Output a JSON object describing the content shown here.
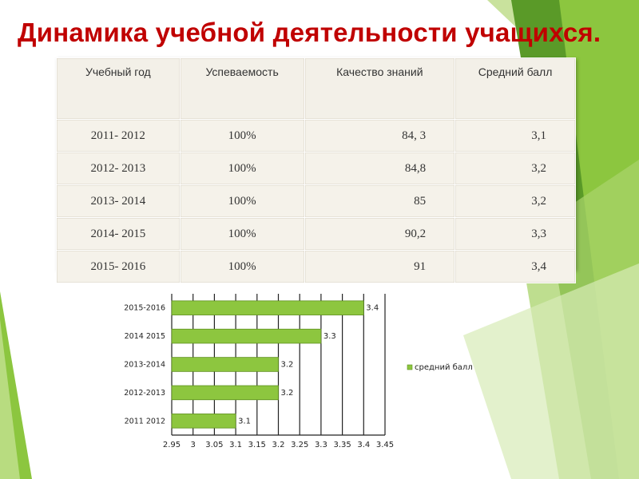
{
  "title": "Динамика учебной деятельности учащихся.",
  "table": {
    "headers": [
      "Учебный год",
      "Успеваемость",
      "Качество знаний",
      "Средний балл"
    ],
    "rows": [
      [
        "2011- 2012",
        "100%",
        "84, 3",
        "3,1"
      ],
      [
        "2012- 2013",
        "100%",
        "84,8",
        "3,2"
      ],
      [
        "2013- 2014",
        "100%",
        "85",
        "3,2"
      ],
      [
        "2014- 2015",
        "100%",
        "90,2",
        "3,3"
      ],
      [
        "2015- 2016",
        "100%",
        "91",
        "3,4"
      ]
    ]
  },
  "colors": {
    "title": "#c00000",
    "bar": "#8dc63f",
    "bar_edge": "#5e8f1f",
    "background_accent_dark": "#4b7f1e",
    "background_accent_light": "#8cc63f"
  },
  "chart_data": {
    "type": "bar",
    "orientation": "horizontal",
    "categories": [
      "2011 2012",
      "2012-2013",
      "2013-2014",
      "2014 2015",
      "2015-2016"
    ],
    "series": [
      {
        "name": "средний балл",
        "values": [
          3.1,
          3.2,
          3.2,
          3.3,
          3.4
        ]
      }
    ],
    "data_labels": [
      "3.1",
      "3.2",
      "3.2",
      "3.3",
      "3.4"
    ],
    "xlim": [
      2.95,
      3.45
    ],
    "x_ticks": [
      "2.95",
      "3",
      "3.05",
      "3.1",
      "3.15",
      "3.2",
      "3.25",
      "3.3",
      "3.35",
      "3.4",
      "3.45"
    ],
    "grid": true,
    "legend_position": "right"
  }
}
